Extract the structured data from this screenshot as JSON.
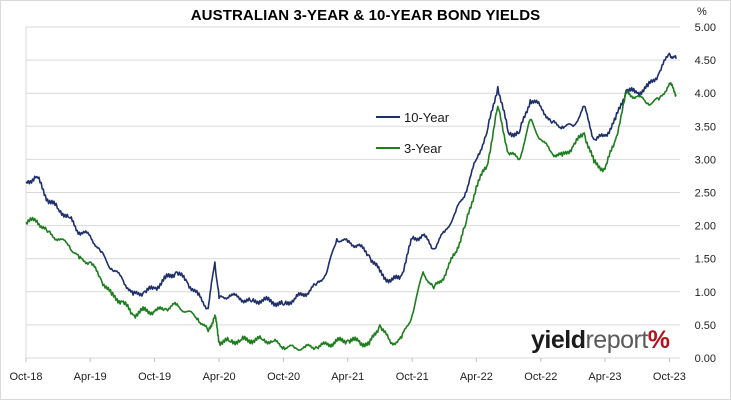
{
  "chart_data": {
    "type": "line",
    "title": "AUSTRALIAN 3-YEAR & 10-YEAR BOND YIELDS",
    "y_unit": "%",
    "ylim": [
      0,
      5
    ],
    "yticks": [
      "0.00",
      "0.50",
      "1.00",
      "1.50",
      "2.00",
      "2.50",
      "3.00",
      "3.50",
      "4.00",
      "4.50",
      "5.00"
    ],
    "xlim": [
      "2018-10-01",
      "2023-10-31"
    ],
    "x_tick_labels": [
      "Oct-18",
      "Apr-19",
      "Oct-19",
      "Apr-20",
      "Oct-20",
      "Apr-21",
      "Oct-21",
      "Apr-22",
      "Oct-22",
      "Apr-23",
      "Oct-23"
    ],
    "x_tick_dates": [
      "2018-10-01",
      "2019-04-01",
      "2019-10-01",
      "2020-04-01",
      "2020-10-01",
      "2021-04-01",
      "2021-10-01",
      "2022-04-01",
      "2022-10-01",
      "2023-04-01",
      "2023-10-01"
    ],
    "grid": "horizontal",
    "legend_position": "upper-center",
    "series": [
      {
        "name": "10-Year",
        "color": "#1f2f6b",
        "points": [
          [
            "2018-10-01",
            2.66
          ],
          [
            "2018-11-01",
            2.74
          ],
          [
            "2018-12-01",
            2.4
          ],
          [
            "2019-01-01",
            2.25
          ],
          [
            "2019-02-01",
            2.12
          ],
          [
            "2019-03-01",
            1.9
          ],
          [
            "2019-04-01",
            1.85
          ],
          [
            "2019-05-01",
            1.6
          ],
          [
            "2019-06-01",
            1.35
          ],
          [
            "2019-07-01",
            1.2
          ],
          [
            "2019-08-01",
            0.95
          ],
          [
            "2019-09-01",
            1.0
          ],
          [
            "2019-10-01",
            1.05
          ],
          [
            "2019-11-01",
            1.2
          ],
          [
            "2019-12-01",
            1.3
          ],
          [
            "2020-01-01",
            1.15
          ],
          [
            "2020-02-01",
            0.95
          ],
          [
            "2020-03-01",
            0.75
          ],
          [
            "2020-03-20",
            1.45
          ],
          [
            "2020-04-01",
            0.9
          ],
          [
            "2020-05-01",
            0.95
          ],
          [
            "2020-06-01",
            0.9
          ],
          [
            "2020-07-01",
            0.85
          ],
          [
            "2020-08-01",
            0.88
          ],
          [
            "2020-09-01",
            0.85
          ],
          [
            "2020-10-01",
            0.8
          ],
          [
            "2020-11-01",
            0.9
          ],
          [
            "2020-12-01",
            0.97
          ],
          [
            "2021-01-01",
            1.1
          ],
          [
            "2021-02-01",
            1.3
          ],
          [
            "2021-03-01",
            1.8
          ],
          [
            "2021-04-01",
            1.75
          ],
          [
            "2021-05-01",
            1.7
          ],
          [
            "2021-06-01",
            1.55
          ],
          [
            "2021-07-01",
            1.3
          ],
          [
            "2021-08-01",
            1.15
          ],
          [
            "2021-09-01",
            1.25
          ],
          [
            "2021-10-01",
            1.8
          ],
          [
            "2021-11-01",
            1.85
          ],
          [
            "2021-12-01",
            1.65
          ],
          [
            "2022-01-01",
            1.9
          ],
          [
            "2022-02-01",
            2.2
          ],
          [
            "2022-03-01",
            2.5
          ],
          [
            "2022-04-01",
            3.0
          ],
          [
            "2022-05-01",
            3.4
          ],
          [
            "2022-06-01",
            4.1
          ],
          [
            "2022-07-01",
            3.4
          ],
          [
            "2022-08-01",
            3.4
          ],
          [
            "2022-09-01",
            3.9
          ],
          [
            "2022-10-01",
            3.8
          ],
          [
            "2022-11-01",
            3.55
          ],
          [
            "2022-12-01",
            3.5
          ],
          [
            "2023-01-01",
            3.5
          ],
          [
            "2023-02-01",
            3.8
          ],
          [
            "2023-03-01",
            3.3
          ],
          [
            "2023-04-01",
            3.35
          ],
          [
            "2023-05-01",
            3.6
          ],
          [
            "2023-06-01",
            4.05
          ],
          [
            "2023-07-01",
            4.0
          ],
          [
            "2023-08-01",
            4.1
          ],
          [
            "2023-09-01",
            4.3
          ],
          [
            "2023-10-01",
            4.6
          ],
          [
            "2023-10-20",
            4.52
          ]
        ]
      },
      {
        "name": "3-Year",
        "color": "#1e7d1e",
        "points": [
          [
            "2018-10-01",
            2.05
          ],
          [
            "2018-11-01",
            2.08
          ],
          [
            "2018-12-01",
            1.9
          ],
          [
            "2019-01-01",
            1.8
          ],
          [
            "2019-02-01",
            1.7
          ],
          [
            "2019-03-01",
            1.5
          ],
          [
            "2019-04-01",
            1.45
          ],
          [
            "2019-05-01",
            1.2
          ],
          [
            "2019-06-01",
            0.95
          ],
          [
            "2019-07-01",
            0.85
          ],
          [
            "2019-08-01",
            0.65
          ],
          [
            "2019-09-01",
            0.72
          ],
          [
            "2019-10-01",
            0.7
          ],
          [
            "2019-11-01",
            0.75
          ],
          [
            "2019-12-01",
            0.8
          ],
          [
            "2020-01-01",
            0.7
          ],
          [
            "2020-02-01",
            0.6
          ],
          [
            "2020-03-01",
            0.4
          ],
          [
            "2020-03-20",
            0.65
          ],
          [
            "2020-04-01",
            0.25
          ],
          [
            "2020-05-01",
            0.25
          ],
          [
            "2020-06-01",
            0.27
          ],
          [
            "2020-07-01",
            0.27
          ],
          [
            "2020-08-01",
            0.28
          ],
          [
            "2020-09-01",
            0.25
          ],
          [
            "2020-10-01",
            0.17
          ],
          [
            "2020-11-01",
            0.15
          ],
          [
            "2020-12-01",
            0.16
          ],
          [
            "2021-01-01",
            0.17
          ],
          [
            "2021-02-01",
            0.2
          ],
          [
            "2021-03-01",
            0.25
          ],
          [
            "2021-04-01",
            0.27
          ],
          [
            "2021-05-01",
            0.25
          ],
          [
            "2021-06-01",
            0.2
          ],
          [
            "2021-07-01",
            0.5
          ],
          [
            "2021-08-01",
            0.22
          ],
          [
            "2021-09-01",
            0.3
          ],
          [
            "2021-10-01",
            0.65
          ],
          [
            "2021-11-01",
            1.3
          ],
          [
            "2021-12-01",
            1.05
          ],
          [
            "2022-01-01",
            1.25
          ],
          [
            "2022-02-01",
            1.6
          ],
          [
            "2022-03-01",
            2.0
          ],
          [
            "2022-04-01",
            2.6
          ],
          [
            "2022-05-01",
            2.9
          ],
          [
            "2022-06-01",
            3.8
          ],
          [
            "2022-07-01",
            3.1
          ],
          [
            "2022-08-01",
            3.0
          ],
          [
            "2022-09-01",
            3.6
          ],
          [
            "2022-10-01",
            3.3
          ],
          [
            "2022-11-01",
            3.1
          ],
          [
            "2022-12-01",
            3.05
          ],
          [
            "2023-01-01",
            3.2
          ],
          [
            "2023-02-01",
            3.4
          ],
          [
            "2023-03-01",
            2.95
          ],
          [
            "2023-04-01",
            2.85
          ],
          [
            "2023-05-01",
            3.3
          ],
          [
            "2023-06-01",
            4.0
          ],
          [
            "2023-07-01",
            3.95
          ],
          [
            "2023-08-01",
            3.85
          ],
          [
            "2023-09-01",
            3.9
          ],
          [
            "2023-10-01",
            4.15
          ],
          [
            "2023-10-20",
            3.98
          ]
        ]
      }
    ]
  },
  "branding": {
    "part1": "yield",
    "part2": "report",
    "part3": "%"
  }
}
